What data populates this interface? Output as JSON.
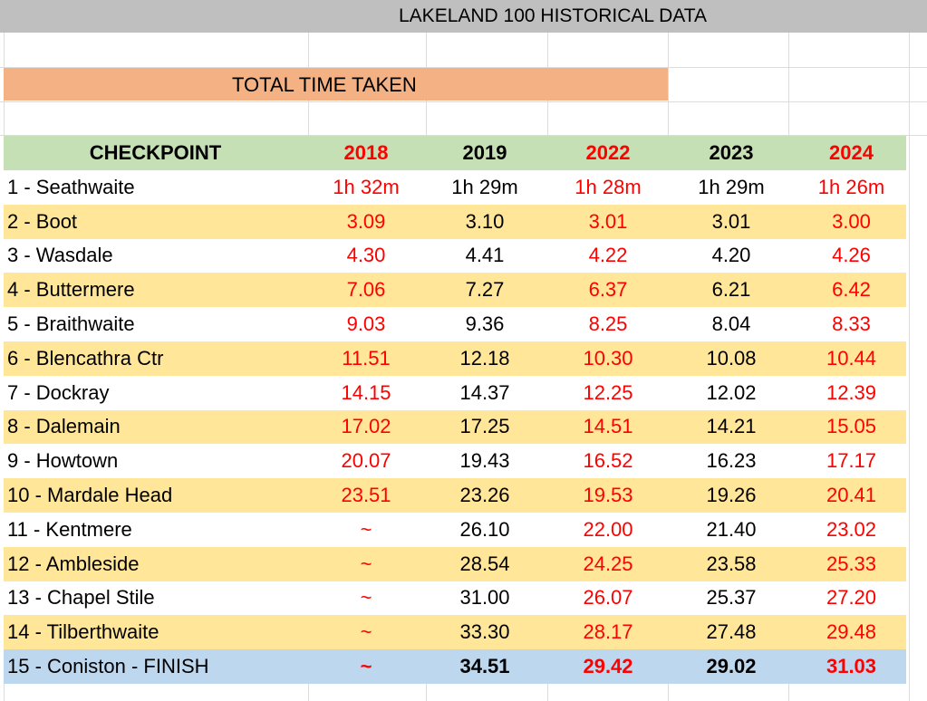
{
  "title": "LAKELAND 100 HISTORICAL DATA",
  "section_label": "TOTAL TIME TAKEN",
  "header": {
    "checkpoint": "CHECKPOINT",
    "years": [
      "2018",
      "2019",
      "2022",
      "2023",
      "2024"
    ]
  },
  "colors": {
    "title_bar": "#bfbfbf",
    "section_bar": "#f4b183",
    "header_row": "#c5e0b4",
    "alt_row": "#ffe699",
    "finish_row": "#bdd7ee",
    "red_year": "#ff0000"
  },
  "rows": [
    {
      "name": "1 - Seathwaite",
      "values": [
        "1h 32m",
        "1h 29m",
        "1h 28m",
        "1h 29m",
        "1h 26m"
      ]
    },
    {
      "name": "2 - Boot",
      "values": [
        "3.09",
        "3.10",
        "3.01",
        "3.01",
        "3.00"
      ]
    },
    {
      "name": "3 - Wasdale",
      "values": [
        "4.30",
        "4.41",
        "4.22",
        "4.20",
        "4.26"
      ]
    },
    {
      "name": "4 - Buttermere",
      "values": [
        "7.06",
        "7.27",
        "6.37",
        "6.21",
        "6.42"
      ]
    },
    {
      "name": "5 - Braithwaite",
      "values": [
        "9.03",
        "9.36",
        "8.25",
        "8.04",
        "8.33"
      ]
    },
    {
      "name": "6 - Blencathra Ctr",
      "values": [
        "11.51",
        "12.18",
        "10.30",
        "10.08",
        "10.44"
      ]
    },
    {
      "name": "7 - Dockray",
      "values": [
        "14.15",
        "14.37",
        "12.25",
        "12.02",
        "12.39"
      ]
    },
    {
      "name": "8 - Dalemain",
      "values": [
        "17.02",
        "17.25",
        "14.51",
        "14.21",
        "15.05"
      ]
    },
    {
      "name": "9 - Howtown",
      "values": [
        "20.07",
        "19.43",
        "16.52",
        "16.23",
        "17.17"
      ]
    },
    {
      "name": "10 - Mardale Head",
      "values": [
        "23.51",
        "23.26",
        "19.53",
        "19.26",
        "20.41"
      ]
    },
    {
      "name": "11 - Kentmere",
      "values": [
        "~",
        "26.10",
        "22.00",
        "21.40",
        "23.02"
      ]
    },
    {
      "name": "12 - Ambleside",
      "values": [
        "~",
        "28.54",
        "24.25",
        "23.58",
        "25.33"
      ]
    },
    {
      "name": "13 - Chapel Stile",
      "values": [
        "~",
        "31.00",
        "26.07",
        "25.37",
        "27.20"
      ]
    },
    {
      "name": "14 - Tilberthwaite",
      "values": [
        "~",
        "33.30",
        "28.17",
        "27.48",
        "29.48"
      ]
    },
    {
      "name": "15 - Coniston - FINISH",
      "values": [
        "~",
        "34.51",
        "29.42",
        "29.02",
        "31.03"
      ]
    }
  ]
}
